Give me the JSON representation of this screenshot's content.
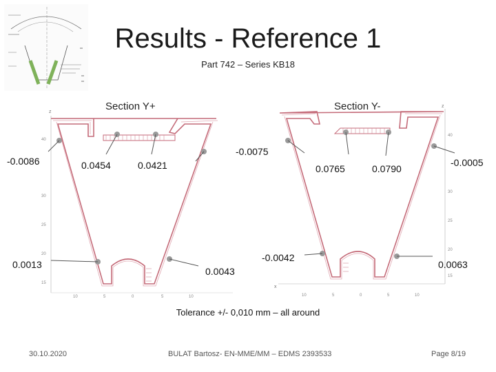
{
  "slide": {
    "title": "Results  - Reference 1",
    "subtitle": "Part 742 – Series KB18",
    "tolerance_note": "Tolerance +/- 0,010 mm – all around",
    "date": "30.10.2020",
    "author": "BULAT Bartosz- EN-MME/MM – EDMS 2393533",
    "page": "Page 8/19"
  },
  "sections": {
    "left": {
      "label": "Section Y+",
      "measurements": {
        "upper_left": "-0.0086",
        "top_left": "0.0454",
        "top_right": "0.0421",
        "upper_right": "-0.0075",
        "lower_left": "0.0013",
        "lower_right": "0.0043"
      },
      "axis_ticks_y": [
        "40",
        "30",
        "25",
        "20",
        "15"
      ],
      "axis_ticks_x": [
        "10",
        "5",
        "0",
        "5",
        "10"
      ],
      "axis_name_z": "z"
    },
    "right": {
      "label": "Section Y-",
      "measurements": {
        "upper_left": "0.0765",
        "top_center": "0.0790",
        "upper_right": "-0.0005",
        "lower_left": "-0.0042",
        "lower_right": "0.0063"
      },
      "axis_ticks_y": [
        "40",
        "30",
        "25",
        "20",
        "15"
      ],
      "axis_ticks_x": [
        "10",
        "5",
        "0",
        "5",
        "10"
      ],
      "axis_name_z": "z",
      "axis_name_x": "x"
    }
  },
  "colors": {
    "profile_line": "#c46a78",
    "probe_line": "#555555",
    "probe_point": "#9a9a9a"
  }
}
